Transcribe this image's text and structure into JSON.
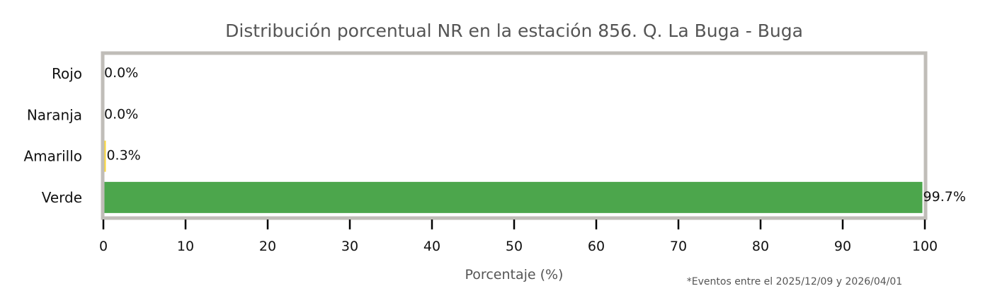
{
  "chart_data": {
    "type": "bar",
    "orientation": "horizontal",
    "title": "Distribución porcentual NR en la estación 856. Q. La Buga - Buga",
    "xlabel": "Porcentaje (%)",
    "ylabel": "",
    "xlim": [
      0,
      100
    ],
    "xticks": [
      "0",
      "10",
      "20",
      "30",
      "40",
      "50",
      "60",
      "70",
      "80",
      "90",
      "100"
    ],
    "categories": [
      "Rojo",
      "Naranja",
      "Amarillo",
      "Verde"
    ],
    "values": [
      0.0,
      0.0,
      0.3,
      99.7
    ],
    "data_labels": [
      "0.0%",
      "0.0%",
      "0.3%",
      "99.7%"
    ],
    "colors": [
      "#e53935",
      "#fb8c00",
      "#fdd835",
      "#4ca64c"
    ],
    "frame_color": "#c0bdb8",
    "grid": false,
    "footnote": "*Eventos entre el 2025/12/09 y 2026/04/01"
  }
}
